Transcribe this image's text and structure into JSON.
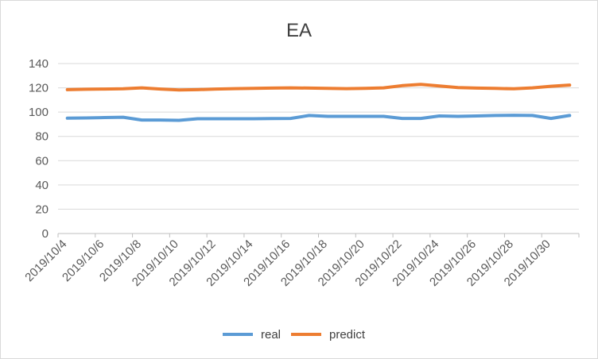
{
  "chart_data": {
    "type": "line",
    "title": "EA",
    "xlabel": "",
    "ylabel": "",
    "ylim": [
      0,
      140
    ],
    "yticks": [
      0,
      20,
      40,
      60,
      80,
      100,
      120,
      140
    ],
    "grid": "horizontal",
    "legend_position": "bottom",
    "categories": [
      "2019/10/4",
      "2019/10/5",
      "2019/10/6",
      "2019/10/7",
      "2019/10/8",
      "2019/10/9",
      "2019/10/10",
      "2019/10/11",
      "2019/10/12",
      "2019/10/13",
      "2019/10/14",
      "2019/10/15",
      "2019/10/16",
      "2019/10/17",
      "2019/10/18",
      "2019/10/19",
      "2019/10/20",
      "2019/10/21",
      "2019/10/22",
      "2019/10/23",
      "2019/10/24",
      "2019/10/25",
      "2019/10/26",
      "2019/10/27",
      "2019/10/28",
      "2019/10/29",
      "2019/10/30",
      "2019/10/31"
    ],
    "tick_labels": [
      "2019/10/4",
      "2019/10/6",
      "2019/10/8",
      "2019/10/10",
      "2019/10/12",
      "2019/10/14",
      "2019/10/16",
      "2019/10/18",
      "2019/10/20",
      "2019/10/22",
      "2019/10/24",
      "2019/10/26",
      "2019/10/28",
      "2019/10/30"
    ],
    "series": [
      {
        "name": "real",
        "color": "#5B9BD5",
        "values": [
          95,
          95.2,
          95.5,
          95.8,
          93.5,
          93.5,
          93.2,
          94.5,
          94.5,
          94.5,
          94.5,
          94.7,
          94.8,
          97.2,
          96.5,
          96.5,
          96.5,
          96.5,
          94.8,
          94.8,
          96.8,
          96.5,
          96.8,
          97.2,
          97.4,
          97.2,
          94.8,
          97.2
        ]
      },
      {
        "name": "predict",
        "color": "#ED7D31",
        "values": [
          118.5,
          118.8,
          119,
          119.2,
          120,
          119,
          118.2,
          118.5,
          119,
          119.3,
          119.6,
          119.8,
          120,
          119.8,
          119.5,
          119.3,
          119.6,
          120,
          121.8,
          122.8,
          121.5,
          120.2,
          119.8,
          119.5,
          119.2,
          120,
          121.3,
          122.3
        ]
      }
    ]
  }
}
